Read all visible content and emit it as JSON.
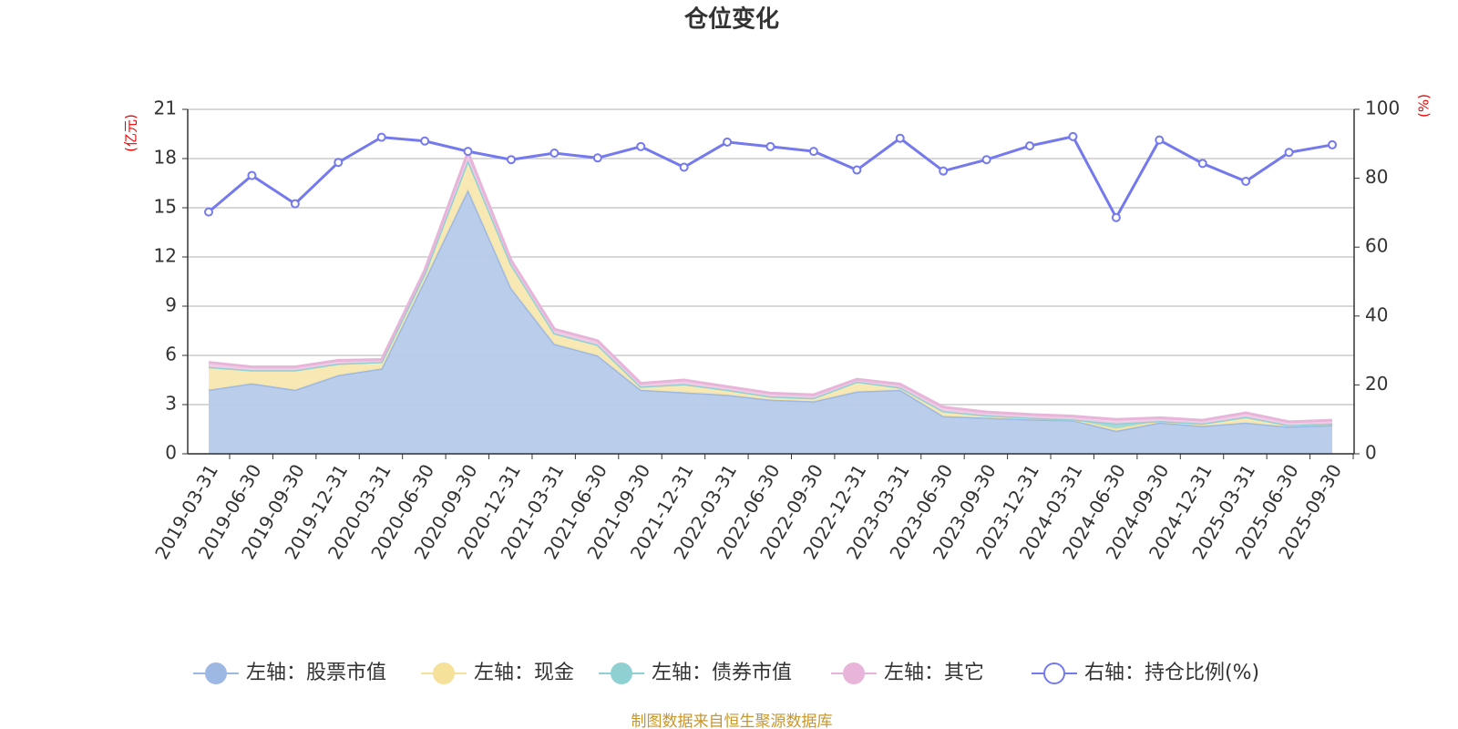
{
  "chart_data": {
    "type": "stacked-area-line",
    "title": "仓位变化",
    "unit_left": "(亿元)",
    "unit_right": "(%)",
    "categories": [
      "2019-03-31",
      "2019-06-30",
      "2019-09-30",
      "2019-12-31",
      "2020-03-31",
      "2020-06-30",
      "2020-09-30",
      "2020-12-31",
      "2021-03-31",
      "2021-06-30",
      "2021-09-30",
      "2021-12-31",
      "2022-03-31",
      "2022-06-30",
      "2022-09-30",
      "2022-12-31",
      "2023-03-31",
      "2023-06-30",
      "2023-09-30",
      "2023-12-31",
      "2024-03-31",
      "2024-06-30",
      "2024-09-30",
      "2024-12-31",
      "2025-03-31",
      "2025-06-30",
      "2025-09-30"
    ],
    "series": [
      {
        "name": "左轴：股票市值",
        "color": "#9db8e2",
        "fill": "#b6cbea",
        "values": [
          3.9,
          4.3,
          3.9,
          4.8,
          5.2,
          10.6,
          16.1,
          10.1,
          6.7,
          6.0,
          3.9,
          3.75,
          3.6,
          3.3,
          3.2,
          3.8,
          3.9,
          2.3,
          2.2,
          2.1,
          2.05,
          1.4,
          1.9,
          1.7,
          1.9,
          1.65,
          1.75
        ]
      },
      {
        "name": "左轴：现金",
        "color": "#f5e19a",
        "fill": "#f8e8b0",
        "values": [
          1.4,
          0.8,
          1.2,
          0.7,
          0.4,
          0.4,
          1.8,
          1.45,
          0.65,
          0.65,
          0.2,
          0.5,
          0.3,
          0.2,
          0.2,
          0.6,
          0.15,
          0.3,
          0.15,
          0.1,
          0.05,
          0.15,
          0.1,
          0.15,
          0.35,
          0.1,
          0.1
        ]
      },
      {
        "name": "左轴：债券市值",
        "color": "#8fd1d3",
        "fill": "#9fd8da",
        "values": [
          0,
          0,
          0,
          0,
          0,
          0,
          0,
          0,
          0,
          0,
          0,
          0,
          0,
          0,
          0,
          0,
          0,
          0,
          0,
          0,
          0,
          0.3,
          0,
          0,
          0,
          0,
          0
        ]
      },
      {
        "name": "左轴：其它",
        "color": "#e8b4d9",
        "fill": "#f0cbe5",
        "values": [
          0.28,
          0.2,
          0.2,
          0.2,
          0.15,
          0.2,
          0.5,
          0.25,
          0.25,
          0.25,
          0.2,
          0.25,
          0.2,
          0.2,
          0.2,
          0.15,
          0.2,
          0.25,
          0.2,
          0.2,
          0.2,
          0.25,
          0.2,
          0.2,
          0.25,
          0.2,
          0.2
        ]
      },
      {
        "name": "右轴：持仓比例(%)",
        "color": "#7479ee",
        "axis": "y2",
        "values": [
          70.2,
          80.8,
          72.6,
          84.6,
          91.9,
          90.8,
          87.8,
          85.4,
          87.3,
          85.9,
          89.2,
          83.2,
          90.5,
          89.2,
          87.8,
          82.4,
          91.6,
          82.1,
          85.4,
          89.4,
          92.1,
          68.6,
          91.1,
          84.3,
          79.1,
          87.5,
          89.7
        ]
      }
    ],
    "ylim": [
      0,
      21
    ],
    "yticks": [
      0,
      3,
      6,
      9,
      12,
      15,
      18,
      21
    ],
    "y2lim": [
      0,
      100
    ],
    "y2ticks": [
      0,
      20,
      40,
      60,
      80,
      100
    ],
    "grid": true,
    "legend": "bottom",
    "source": "制图数据来自恒生聚源数据库"
  }
}
